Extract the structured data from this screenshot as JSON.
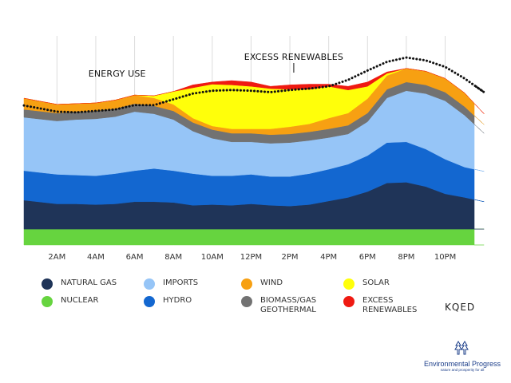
{
  "chart_data": {
    "type": "area",
    "title": "",
    "xlabel": "",
    "ylabel": "",
    "stacking": "stacked",
    "x": [
      1,
      2,
      3,
      4,
      5,
      6,
      7,
      8,
      9,
      10,
      11,
      12,
      13,
      14,
      15,
      16,
      17,
      18,
      19,
      20,
      21,
      22,
      23,
      24
    ],
    "x_ticks": [
      {
        "at": 2,
        "label": "2AM"
      },
      {
        "at": 4,
        "label": "4AM"
      },
      {
        "at": 6,
        "label": "6AM"
      },
      {
        "at": 8,
        "label": "8AM"
      },
      {
        "at": 10,
        "label": "10AM"
      },
      {
        "at": 12,
        "label": "12PM"
      },
      {
        "at": 14,
        "label": "2PM"
      },
      {
        "at": 16,
        "label": "4PM"
      },
      {
        "at": 18,
        "label": "6PM"
      },
      {
        "at": 20,
        "label": "8PM"
      },
      {
        "at": 22,
        "label": "10PM"
      }
    ],
    "xlim": [
      0.3,
      23.5
    ],
    "ylim": [
      0,
      29
    ],
    "grid": "vertical",
    "series": [
      {
        "name": "NUCLEAR",
        "color": "#66d43f",
        "values": [
          2.2,
          2.2,
          2.2,
          2.2,
          2.2,
          2.2,
          2.2,
          2.2,
          2.2,
          2.2,
          2.2,
          2.2,
          2.2,
          2.2,
          2.2,
          2.2,
          2.2,
          2.2,
          2.2,
          2.2,
          2.2,
          2.2,
          2.2,
          2.2
        ]
      },
      {
        "name": "NATURAL GAS",
        "color": "#1f3458",
        "values": [
          3.8,
          3.5,
          3.5,
          3.4,
          3.5,
          3.8,
          3.8,
          3.7,
          3.3,
          3.4,
          3.3,
          3.5,
          3.3,
          3.2,
          3.4,
          3.9,
          4.4,
          5.2,
          6.4,
          6.5,
          5.9,
          4.9,
          4.4,
          3.8
        ]
      },
      {
        "name": "HYDRO",
        "color": "#1367d0",
        "values": [
          4.1,
          4.1,
          4,
          4,
          4.2,
          4.3,
          4.6,
          4.4,
          4.4,
          4,
          4.1,
          4.1,
          4,
          4.1,
          4.3,
          4.4,
          4.6,
          5,
          5.6,
          5.6,
          5.2,
          4.8,
          4.2,
          4.2
        ]
      },
      {
        "name": "IMPORTS",
        "color": "#96c5f7",
        "values": [
          7.4,
          7.4,
          7.7,
          7.9,
          7.9,
          8.2,
          7.6,
          7.1,
          5.9,
          5.2,
          4.7,
          4.5,
          4.6,
          4.7,
          4.6,
          4.4,
          4.2,
          4.7,
          6.2,
          7.1,
          7.7,
          8.1,
          7.2,
          5.3
        ]
      },
      {
        "name": "BIOMASS/GAS GEOTHERMAL",
        "color": "#727272",
        "values": [
          1.1,
          1.1,
          1.1,
          1.1,
          1.1,
          1.1,
          1.1,
          1.2,
          1.2,
          1.2,
          1.2,
          1.2,
          1.2,
          1.2,
          1.2,
          1.2,
          1.2,
          1.2,
          1.2,
          1.2,
          1.2,
          1.2,
          1.2,
          1.2
        ]
      },
      {
        "name": "WIND",
        "color": "#f7a012",
        "values": [
          1.4,
          1.2,
          1.1,
          1.1,
          1.2,
          1.2,
          1.1,
          0.9,
          0.6,
          0.5,
          0.6,
          0.6,
          0.8,
          1,
          1.1,
          1.5,
          1.7,
          2,
          1.9,
          1.9,
          1.9,
          1.9,
          1.9,
          1.5
        ]
      },
      {
        "name": "SOLAR",
        "color": "#ffff0a",
        "values": [
          0,
          0,
          0,
          0,
          0,
          0,
          0.3,
          1.8,
          4.2,
          5.8,
          6.1,
          5.9,
          5.6,
          5.2,
          4.8,
          4.4,
          3.2,
          1.7,
          0.3,
          0,
          0,
          0,
          0,
          0
        ]
      },
      {
        "name": "EXCESS RENEWABLES",
        "color": "#ef1a12",
        "values": [
          0,
          0,
          0,
          0,
          0,
          0,
          0,
          0,
          0.4,
          0.3,
          0.6,
          0.6,
          0.3,
          0.6,
          0.7,
          0.3,
          0.5,
          0.6,
          0.2,
          0,
          0,
          0,
          0,
          0
        ]
      }
    ],
    "energy_use": {
      "name": "ENERGY USE",
      "style": "dotted",
      "values": [
        19,
        18.5,
        18.4,
        18.6,
        18.8,
        19.4,
        19.4,
        20.2,
        21,
        21.4,
        21.5,
        21.4,
        21.2,
        21.5,
        21.7,
        22,
        22.9,
        24.2,
        25.4,
        26,
        25.6,
        24.7,
        23.1,
        21.2
      ]
    },
    "annotations": [
      {
        "text": "ENERGY USE",
        "near_x": 5.1
      },
      {
        "text": "EXCESS RENEWABLES",
        "near_x": 14.2
      }
    ],
    "legend_position": "bottom",
    "legend_columns": [
      [
        "NATURAL GAS",
        "NUCLEAR"
      ],
      [
        "IMPORTS",
        "HYDRO"
      ],
      [
        "WIND",
        "BIOMASS/GAS GEOTHERMAL"
      ],
      [
        "SOLAR",
        "EXCESS RENEWABLES"
      ]
    ]
  },
  "legend": {
    "natural_gas": "NATURAL GAS",
    "nuclear": "NUCLEAR",
    "imports": "IMPORTS",
    "hydro": "HYDRO",
    "wind": "WIND",
    "biomass": "BIOMASS/GAS\nGEOTHERMAL",
    "solar": "SOLAR",
    "excess": "EXCESS\nRENEWABLES"
  },
  "branding": {
    "kqed": "KQED",
    "ep_title": "Environmental Progress",
    "ep_tagline": "nature and prosperity for all",
    "ep_icon": "tree-logo-icon",
    "ep_color": "#1d3f8a"
  }
}
